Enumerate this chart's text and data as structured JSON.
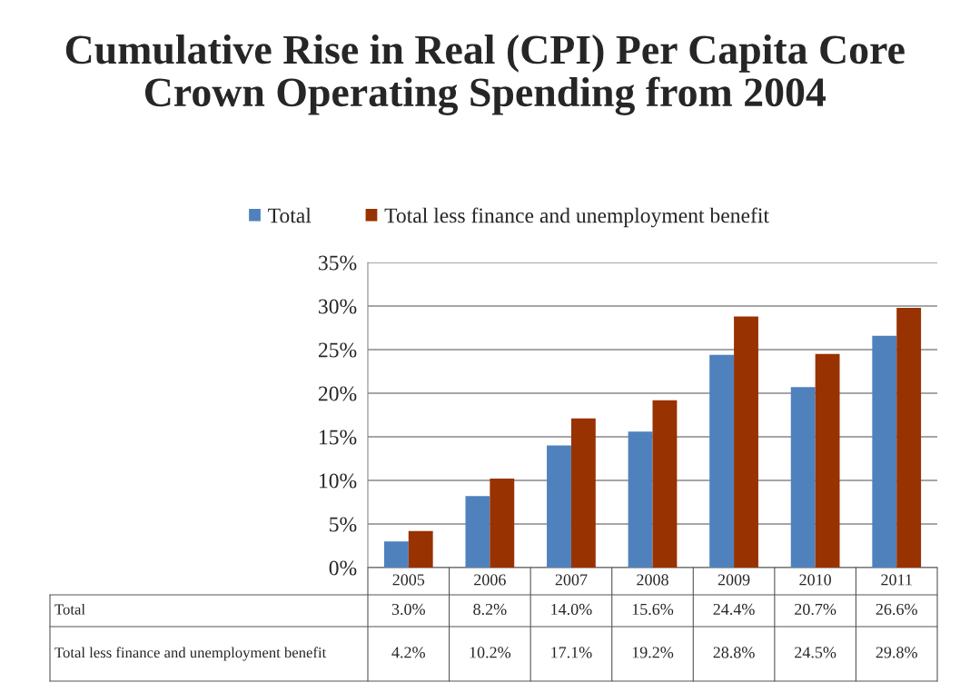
{
  "chart_data": {
    "type": "bar",
    "title": "Cumulative Rise in Real (CPI) Per Capita Core Crown Operating Spending from 2004",
    "categories": [
      "2005",
      "2006",
      "2007",
      "2008",
      "2009",
      "2010",
      "2011"
    ],
    "series": [
      {
        "name": "Total",
        "color": "#4f81bd",
        "values": [
          3.0,
          8.2,
          14.0,
          15.6,
          24.4,
          20.7,
          26.6
        ],
        "value_labels": [
          "3.0%",
          "8.2%",
          "14.0%",
          "15.6%",
          "24.4%",
          "20.7%",
          "26.6%"
        ]
      },
      {
        "name": "Total less finance and unemployment benefit",
        "color": "#983200",
        "values": [
          4.2,
          10.2,
          17.1,
          19.2,
          28.8,
          24.5,
          29.8
        ],
        "value_labels": [
          "4.2%",
          "10.2%",
          "17.1%",
          "19.2%",
          "28.8%",
          "24.5%",
          "29.8%"
        ]
      }
    ],
    "ylim": [
      0,
      35
    ],
    "yticks": [
      {
        "value": 0,
        "label": "0%"
      },
      {
        "value": 5,
        "label": "5%"
      },
      {
        "value": 10,
        "label": "10%"
      },
      {
        "value": 15,
        "label": "15%"
      },
      {
        "value": 20,
        "label": "20%"
      },
      {
        "value": 25,
        "label": "25%"
      },
      {
        "value": 30,
        "label": "30%"
      },
      {
        "value": 35,
        "label": "35%"
      }
    ],
    "grid": "y",
    "legend": "top",
    "tick_labels": "y"
  }
}
